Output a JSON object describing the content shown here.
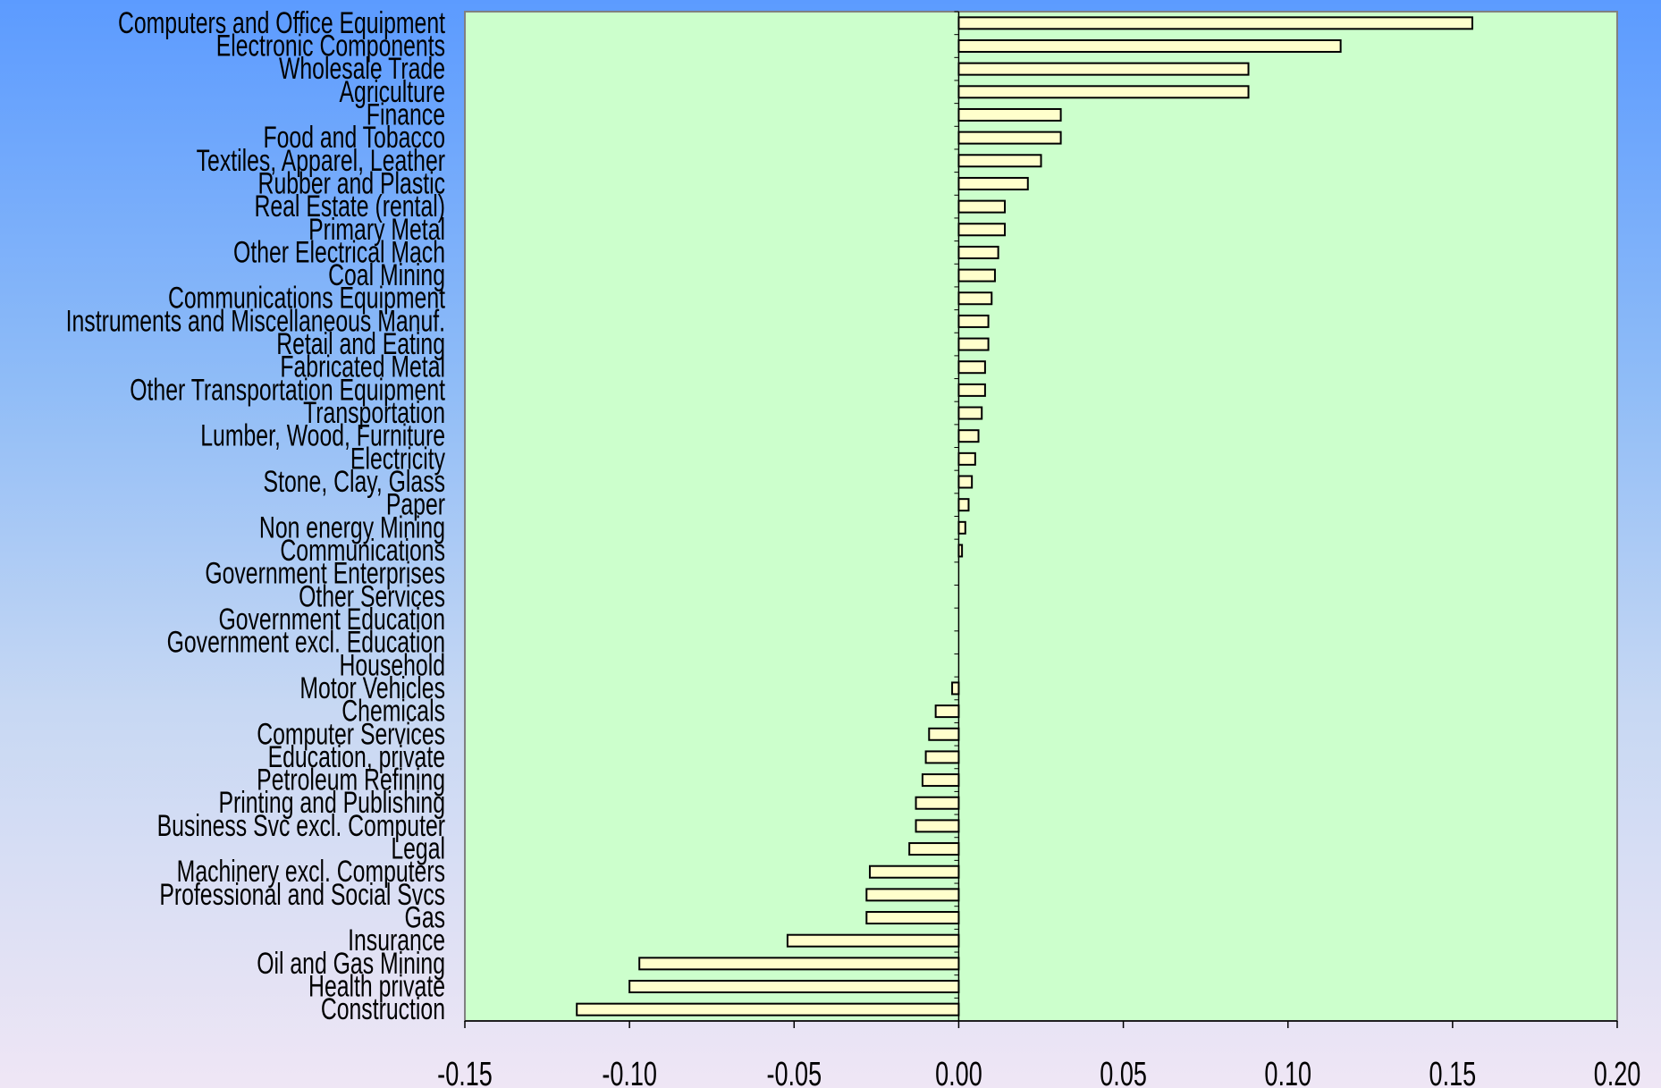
{
  "chart_data": {
    "type": "bar",
    "orientation": "horizontal",
    "title": "",
    "xlabel": "",
    "ylabel": "",
    "xlim": [
      -0.15,
      0.2
    ],
    "x_ticks": [
      "-0.15",
      "-0.10",
      "-0.05",
      "0.00",
      "0.05",
      "0.10",
      "0.15",
      "0.20"
    ],
    "grid": false,
    "legend": "none",
    "colors": {
      "plot_background": "#ccffcc",
      "bar_fill": "#ffffcc",
      "bar_stroke": "#000000",
      "plot_border": "#808080"
    },
    "categories": [
      "Computers and Office Equipment",
      "Electronic Components",
      "Wholesale Trade",
      "Agriculture",
      "Finance",
      "Food and Tobacco",
      "Textiles, Apparel, Leather",
      "Rubber and Plastic",
      "Real Estate (rental)",
      "Primary Metal",
      "Other Electrical Mach",
      "Coal Mining",
      "Communications Equipment",
      "Instruments and Miscellaneous Manuf.",
      "Retail and Eating",
      "Fabricated Metal",
      "Other Transportation Equipment",
      "Transportation",
      "Lumber, Wood, Furniture",
      "Electricity",
      "Stone, Clay, Glass",
      "Paper",
      "Non energy Mining",
      "Communications",
      "Government Enterprises",
      "Other Services",
      "Government Education",
      "Government excl. Education",
      "Household",
      "Motor Vehicles",
      "Chemicals",
      "Computer Services",
      "Education, private",
      "Petroleum Refining",
      "Printing and Publishing",
      "Business Svc excl. Computer",
      "Legal",
      "Machinery excl. Computers",
      "Professional and Social Svcs",
      "Gas",
      "Insurance",
      "Oil and Gas Mining",
      "Health private",
      "Construction"
    ],
    "values": [
      0.156,
      0.116,
      0.088,
      0.088,
      0.031,
      0.031,
      0.025,
      0.021,
      0.014,
      0.014,
      0.012,
      0.011,
      0.01,
      0.009,
      0.009,
      0.008,
      0.008,
      0.007,
      0.006,
      0.005,
      0.004,
      0.003,
      0.002,
      0.001,
      0.0,
      0.0,
      0.0,
      0.0,
      0.0,
      -0.002,
      -0.007,
      -0.009,
      -0.01,
      -0.011,
      -0.013,
      -0.013,
      -0.015,
      -0.027,
      -0.028,
      -0.028,
      -0.052,
      -0.097,
      -0.1,
      -0.116
    ]
  }
}
